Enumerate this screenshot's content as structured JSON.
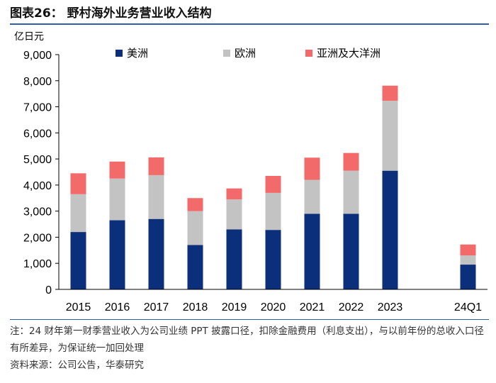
{
  "title": "图表26：  野村海外业务营业收入结构",
  "notes": {
    "footnote": "注：24 财年第一财季营业收入为公司业绩 PPT 披露口径，扣除金融费用（利息支出），与以前年份的总收入口径有所差异，为保证统一加回处理",
    "source": "资料来源：公司公告，华泰研究"
  },
  "chart_data": {
    "type": "bar",
    "stacked": true,
    "unit_label": "亿日元",
    "categories": [
      "2015",
      "2016",
      "2017",
      "2018",
      "2019",
      "2020",
      "2021",
      "2022",
      "2023",
      "",
      "24Q1"
    ],
    "series": [
      {
        "name": "美洲",
        "color": "#0b2f7a",
        "values": [
          2200,
          2650,
          2700,
          1700,
          2300,
          2280,
          2900,
          2900,
          4550,
          null,
          950
        ]
      },
      {
        "name": "欧洲",
        "color": "#c3c3c3",
        "values": [
          1450,
          1600,
          1680,
          1300,
          1150,
          1420,
          1300,
          1650,
          2680,
          null,
          350
        ]
      },
      {
        "name": "亚洲及大洋洲",
        "color": "#f26a6a",
        "values": [
          800,
          650,
          680,
          500,
          420,
          650,
          850,
          680,
          580,
          null,
          420
        ]
      }
    ],
    "yticks": [
      "0",
      "1,000",
      "2,000",
      "3,000",
      "4,000",
      "5,000",
      "6,000",
      "7,000",
      "8,000",
      "9,000"
    ],
    "ylim": [
      0,
      9000
    ],
    "legend_position": "top"
  }
}
